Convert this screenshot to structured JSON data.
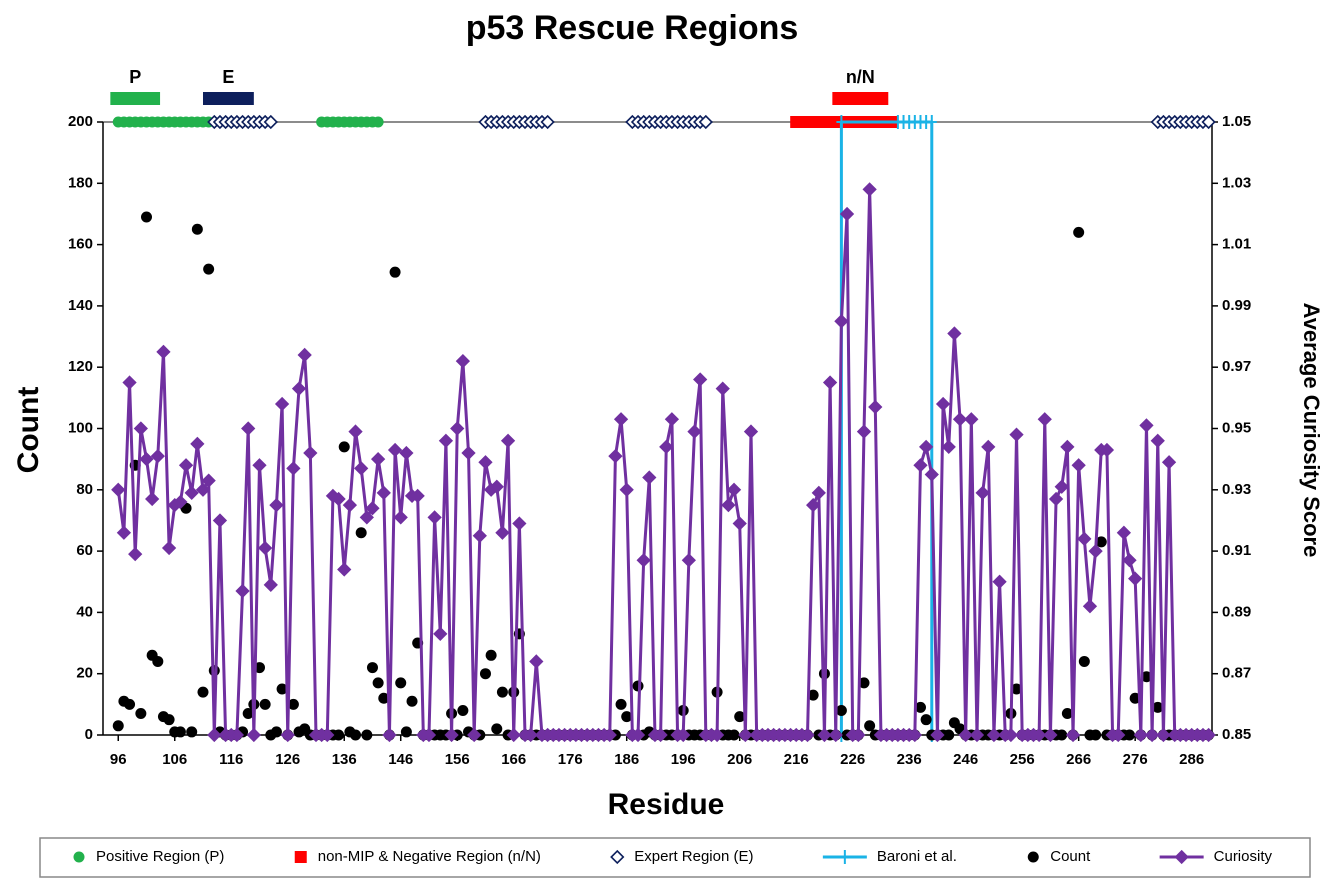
{
  "chart_data": {
    "type": "scatter",
    "title": "p53 Rescue Regions",
    "x_label": "Residue",
    "y_label": "Count",
    "y2_label": "Average Curiosity Score",
    "xlim": [
      93.3,
      289.6
    ],
    "xticks": [
      96,
      106,
      116,
      126,
      136,
      146,
      156,
      166,
      176,
      186,
      196,
      206,
      216,
      226,
      236,
      246,
      256,
      266,
      276,
      286
    ],
    "ylim": [
      0,
      200
    ],
    "yticks": [
      0,
      20,
      40,
      60,
      80,
      100,
      120,
      140,
      160,
      180,
      200
    ],
    "y2lim": [
      0.85,
      1.05
    ],
    "y2ticks": [
      0.85,
      0.87,
      0.89,
      0.91,
      0.93,
      0.95,
      0.97,
      0.99,
      1.01,
      1.03,
      1.05
    ],
    "legend": "bottom",
    "annotations": [
      {
        "text": "P",
        "x_range": [
          94.6,
          103.4
        ],
        "color": "#22b14c"
      },
      {
        "text": "E",
        "x_range": [
          111,
          120
        ],
        "color": "#0d1f5c"
      },
      {
        "text": "n/N",
        "x_range": [
          222.4,
          232.3
        ],
        "color": "#ff0000"
      }
    ],
    "x": [
      96,
      97,
      98,
      99,
      100,
      101,
      102,
      103,
      104,
      105,
      106,
      107,
      108,
      109,
      110,
      111,
      112,
      113,
      114,
      115,
      116,
      117,
      118,
      119,
      120,
      121,
      122,
      123,
      124,
      125,
      126,
      127,
      128,
      129,
      130,
      131,
      132,
      133,
      134,
      135,
      136,
      137,
      138,
      139,
      140,
      141,
      142,
      143,
      144,
      145,
      146,
      147,
      148,
      149,
      150,
      151,
      152,
      153,
      154,
      155,
      156,
      157,
      158,
      159,
      160,
      161,
      162,
      163,
      164,
      165,
      166,
      167,
      168,
      169,
      170,
      171,
      172,
      173,
      174,
      175,
      176,
      177,
      178,
      179,
      180,
      181,
      182,
      183,
      184,
      185,
      186,
      187,
      188,
      189,
      190,
      191,
      192,
      193,
      194,
      195,
      196,
      197,
      198,
      199,
      200,
      201,
      202,
      203,
      204,
      205,
      206,
      207,
      208,
      209,
      210,
      211,
      212,
      213,
      214,
      215,
      216,
      217,
      218,
      219,
      220,
      221,
      222,
      223,
      224,
      225,
      226,
      227,
      228,
      229,
      230,
      231,
      232,
      233,
      234,
      235,
      236,
      237,
      238,
      239,
      240,
      241,
      242,
      243,
      244,
      245,
      246,
      247,
      248,
      249,
      250,
      251,
      252,
      253,
      254,
      255,
      256,
      257,
      258,
      259,
      260,
      261,
      262,
      263,
      264,
      265,
      266,
      267,
      268,
      269,
      270,
      271,
      272,
      273,
      274,
      275,
      276,
      277,
      278,
      279,
      280,
      281,
      282,
      283,
      284,
      285,
      286,
      287,
      288,
      289
    ],
    "series": [
      {
        "name": "Positive Region (P)",
        "color": "#22b14c",
        "marker": "circle",
        "x": [
          96,
          97,
          98,
          99,
          100,
          101,
          102,
          103,
          104,
          105,
          106,
          107,
          108,
          109,
          110,
          111,
          112,
          132,
          133,
          134,
          135,
          136,
          137,
          138,
          139,
          140,
          141,
          142
        ],
        "values": [
          200,
          200,
          200,
          200,
          200,
          200,
          200,
          200,
          200,
          200,
          200,
          200,
          200,
          200,
          200,
          200,
          200,
          200,
          200,
          200,
          200,
          200,
          200,
          200,
          200,
          200,
          200,
          200
        ]
      },
      {
        "name": "non-MIP & Negative Region (n/N)",
        "color": "#ff0000",
        "marker": "square",
        "x": [
          216,
          217,
          218,
          219,
          220,
          221,
          222,
          223,
          224,
          225,
          226,
          227,
          228,
          229,
          230,
          231,
          232,
          233
        ],
        "values": [
          200,
          200,
          200,
          200,
          200,
          200,
          200,
          200,
          200,
          200,
          200,
          200,
          200,
          200,
          200,
          200,
          200,
          200
        ]
      },
      {
        "name": "Expert Region (E)",
        "color": "#0d1f5c",
        "marker": "diamond-open",
        "x": [
          113,
          114,
          115,
          116,
          117,
          118,
          119,
          120,
          121,
          122,
          123,
          161,
          162,
          163,
          164,
          165,
          166,
          167,
          168,
          169,
          170,
          171,
          172,
          187,
          188,
          189,
          190,
          191,
          192,
          193,
          194,
          195,
          196,
          197,
          198,
          199,
          200,
          280,
          281,
          282,
          283,
          284,
          285,
          286,
          287,
          288,
          289
        ],
        "values": [
          200,
          200,
          200,
          200,
          200,
          200,
          200,
          200,
          200,
          200,
          200,
          200,
          200,
          200,
          200,
          200,
          200,
          200,
          200,
          200,
          200,
          200,
          200,
          200,
          200,
          200,
          200,
          200,
          200,
          200,
          200,
          200,
          200,
          200,
          200,
          200,
          200,
          200,
          200,
          200,
          200,
          200,
          200,
          200,
          200,
          200,
          200
        ]
      },
      {
        "name": "Baroni et al.",
        "color": "#1ab3e6",
        "marker": "plus",
        "line": true,
        "x": [
          224,
          224,
          234,
          235,
          236,
          237,
          238,
          239,
          240,
          240
        ],
        "values": [
          0,
          200,
          200,
          200,
          200,
          200,
          200,
          200,
          200,
          0
        ]
      },
      {
        "name": "Count",
        "color": "#000000",
        "marker": "circle",
        "values": [
          3,
          11,
          10,
          88,
          7,
          169,
          26,
          24,
          6,
          5,
          1,
          1,
          74,
          1,
          165,
          14,
          152,
          21,
          1,
          0,
          0,
          0,
          1,
          7,
          10,
          22,
          10,
          0,
          1,
          15,
          0,
          10,
          1,
          2,
          0,
          0,
          0,
          0,
          0,
          0,
          94,
          1,
          0,
          66,
          0,
          22,
          17,
          12,
          0,
          151,
          17,
          1,
          11,
          30,
          0,
          0,
          0,
          0,
          0,
          7,
          0,
          8,
          1,
          0,
          0,
          20,
          26,
          2,
          14,
          0,
          14,
          33,
          0,
          0,
          0,
          0,
          0,
          0,
          0,
          0,
          0,
          0,
          0,
          0,
          0,
          0,
          0,
          0,
          0,
          10,
          6,
          0,
          16,
          0,
          1,
          0,
          0,
          0,
          0,
          0,
          8,
          0,
          0,
          0,
          0,
          0,
          14,
          0,
          0,
          0,
          6,
          0,
          0,
          0,
          0,
          0,
          0,
          0,
          0,
          0,
          0,
          0,
          0,
          13,
          0,
          20,
          0,
          0,
          8,
          0,
          0,
          0,
          17,
          3,
          0,
          0,
          0,
          0,
          0,
          0,
          0,
          0,
          9,
          5,
          0,
          0,
          0,
          0,
          4,
          2,
          0,
          0,
          0,
          0,
          0,
          0,
          0,
          0,
          7,
          15,
          0,
          0,
          0,
          0,
          0,
          0,
          0,
          0,
          7,
          0,
          164,
          24,
          0,
          0,
          63,
          0,
          0,
          0,
          0,
          0,
          12,
          0,
          19,
          0,
          9,
          0,
          0,
          0,
          0,
          0,
          0,
          0,
          0,
          0
        ]
      },
      {
        "name": "Curiosity",
        "color": "#7030a0",
        "marker": "diamond",
        "line": true,
        "axis": "y2",
        "values": [
          0.93,
          0.916,
          0.965,
          0.909,
          0.95,
          0.94,
          0.927,
          0.941,
          0.975,
          0.911,
          0.925,
          0.926,
          0.938,
          0.929,
          0.945,
          0.93,
          0.933,
          0.85,
          0.92,
          0.85,
          0.85,
          0.85,
          0.897,
          0.95,
          0.85,
          0.938,
          0.911,
          0.899,
          0.925,
          0.958,
          0.85,
          0.937,
          0.963,
          0.974,
          0.942,
          0.85,
          0.85,
          0.85,
          0.928,
          0.927,
          0.904,
          0.925,
          0.949,
          0.937,
          0.921,
          0.924,
          0.94,
          0.929,
          0.85,
          0.943,
          0.921,
          0.942,
          0.928,
          0.928,
          0.85,
          0.85,
          0.921,
          0.883,
          0.946,
          0.85,
          0.95,
          0.972,
          0.942,
          0.85,
          0.915,
          0.939,
          0.93,
          0.931,
          0.916,
          0.946,
          0.85,
          0.919,
          0.85,
          0.85,
          0.874,
          0.85,
          0.85,
          0.85,
          0.85,
          0.85,
          0.85,
          0.85,
          0.85,
          0.85,
          0.85,
          0.85,
          0.85,
          0.85,
          0.941,
          0.953,
          0.93,
          0.85,
          0.85,
          0.907,
          0.934,
          0.85,
          0.85,
          0.944,
          0.953,
          0.85,
          0.85,
          0.907,
          0.949,
          0.966,
          0.85,
          0.85,
          0.85,
          0.963,
          0.925,
          0.93,
          0.919,
          0.85,
          0.949,
          0.85,
          0.85,
          0.85,
          0.85,
          0.85,
          0.85,
          0.85,
          0.85,
          0.85,
          0.85,
          0.925,
          0.929,
          0.85,
          0.965,
          0.85,
          0.985,
          1.02,
          0.85,
          0.85,
          0.949,
          1.028,
          0.957,
          0.85,
          0.85,
          0.85,
          0.85,
          0.85,
          0.85,
          0.85,
          0.938,
          0.944,
          0.935,
          0.85,
          0.958,
          0.944,
          0.981,
          0.953,
          0.85,
          0.953,
          0.85,
          0.929,
          0.944,
          0.85,
          0.9,
          0.85,
          0.85,
          0.948,
          0.85,
          0.85,
          0.85,
          0.85,
          0.953,
          0.85,
          0.927,
          0.931,
          0.944,
          0.85,
          0.938,
          0.914,
          0.892,
          0.91,
          0.943,
          0.943,
          0.85,
          0.85,
          0.916,
          0.907,
          0.901,
          0.85,
          0.951,
          0.85,
          0.946,
          0.85,
          0.939,
          0.85,
          0.85,
          0.85,
          0.85,
          0.85,
          0.85,
          0.85
        ]
      }
    ]
  }
}
